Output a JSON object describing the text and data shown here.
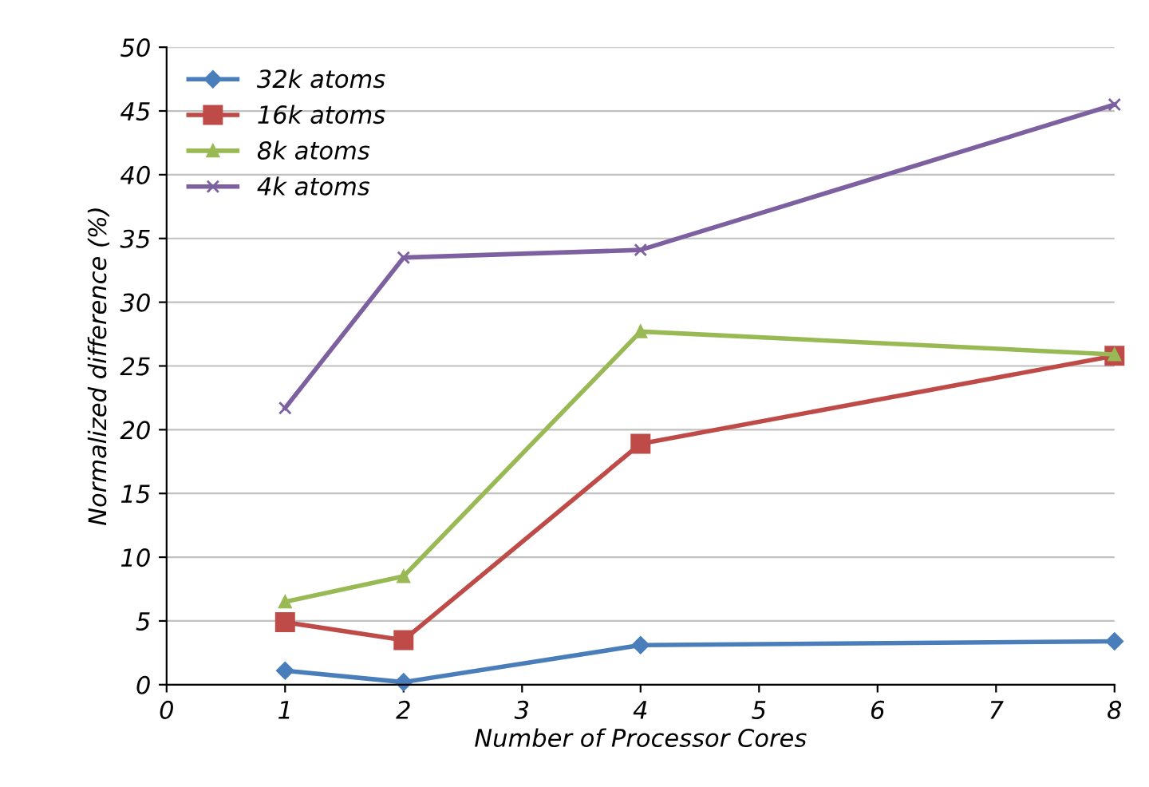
{
  "chart_data": {
    "type": "line",
    "xlabel": "Number of Processor Cores",
    "ylabel": "Normalized difference (%)",
    "x": [
      1,
      2,
      4,
      8
    ],
    "series": [
      {
        "name": "32k atoms",
        "color": "#4a7ebb",
        "marker": "diamond",
        "values": [
          1.1,
          0.2,
          3.1,
          3.4
        ]
      },
      {
        "name": "16k atoms",
        "color": "#be4b48",
        "marker": "square",
        "values": [
          4.9,
          3.5,
          18.9,
          25.8
        ]
      },
      {
        "name": "8k atoms",
        "color": "#98b954",
        "marker": "triangle",
        "values": [
          6.5,
          8.5,
          27.7,
          25.9
        ]
      },
      {
        "name": "4k atoms",
        "color": "#7d60a0",
        "marker": "cross",
        "values": [
          21.7,
          33.5,
          34.1,
          45.5
        ]
      }
    ],
    "xlim": [
      0,
      8
    ],
    "xticks": [
      0,
      1,
      2,
      3,
      4,
      5,
      6,
      7,
      8
    ],
    "ylim": [
      0,
      50
    ],
    "yticks": [
      0,
      5,
      10,
      15,
      20,
      25,
      30,
      35,
      40,
      45,
      50
    ],
    "grid": "y",
    "legend": "top left"
  }
}
